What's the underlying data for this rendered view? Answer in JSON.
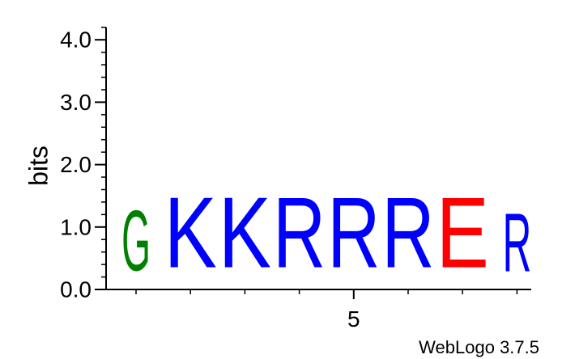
{
  "chart_data": {
    "type": "sequence-logo",
    "ylabel": "bits",
    "ylim": [
      0,
      4.2
    ],
    "yticks": [
      {
        "value": 0,
        "label": "0.0"
      },
      {
        "value": 1,
        "label": "1.0"
      },
      {
        "value": 2,
        "label": "2.0"
      },
      {
        "value": 3,
        "label": "3.0"
      },
      {
        "value": 4,
        "label": "4.0"
      }
    ],
    "yminor_step": 0.2,
    "xtick_labels": [
      {
        "position": 5,
        "label": "5"
      }
    ],
    "positions": [
      {
        "position": 1,
        "letter": "G",
        "bits": 1.55,
        "color": "#008000"
      },
      {
        "position": 2,
        "letter": "K",
        "bits": 1.8,
        "color": "#0000ff"
      },
      {
        "position": 3,
        "letter": "K",
        "bits": 1.8,
        "color": "#0000ff"
      },
      {
        "position": 4,
        "letter": "R",
        "bits": 1.8,
        "color": "#0000ff"
      },
      {
        "position": 5,
        "letter": "R",
        "bits": 1.8,
        "color": "#0000ff"
      },
      {
        "position": 6,
        "letter": "R",
        "bits": 1.8,
        "color": "#0000ff"
      },
      {
        "position": 7,
        "letter": "E",
        "bits": 1.8,
        "color": "#ff0000"
      },
      {
        "position": 8,
        "letter": "R",
        "bits": 1.5,
        "color": "#0000ff"
      }
    ],
    "credit": "WebLogo 3.7.5"
  }
}
